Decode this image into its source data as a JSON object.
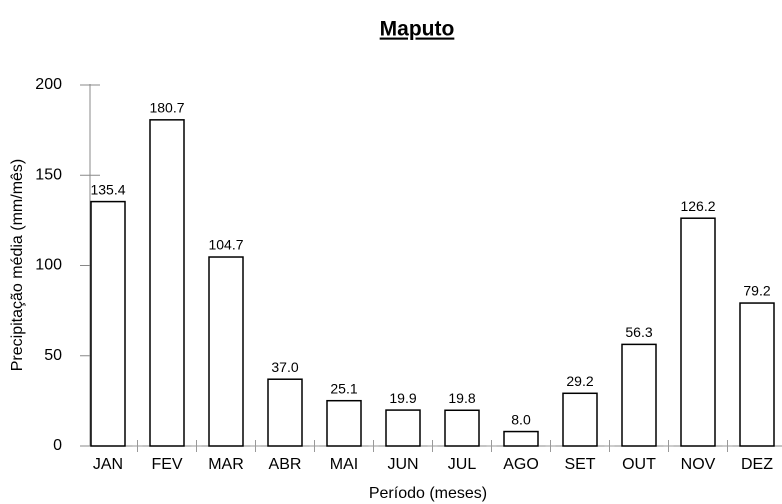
{
  "chart_data": {
    "type": "bar",
    "title": "Maputo",
    "x_label": "Período (meses)",
    "y_label": "Precipitação média (mm/mês)",
    "categories": [
      "JAN",
      "FEV",
      "MAR",
      "ABR",
      "MAI",
      "JUN",
      "JUL",
      "AGO",
      "SET",
      "OUT",
      "NOV",
      "DEZ"
    ],
    "values": [
      135.4,
      180.7,
      104.7,
      37,
      25.1,
      19.9,
      19.8,
      8,
      29.2,
      56.3,
      126.2,
      79.2
    ],
    "value_labels": [
      "135.4",
      "180.7",
      "104.7",
      "37.0",
      "25.1",
      "19.9",
      "19.8",
      "8.0",
      "29.2",
      "56.3",
      "126.2",
      "79.2"
    ],
    "color": "#ffffff",
    "ylim": [
      0,
      200
    ],
    "yticks": [
      0,
      50,
      100,
      150,
      200
    ],
    "grid": false
  }
}
